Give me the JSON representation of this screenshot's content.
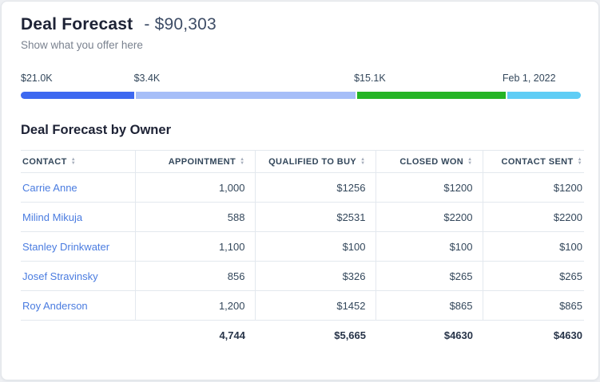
{
  "card": {
    "title": "Deal Forecast",
    "title_suffix": "- $90,303",
    "subtitle": "Show what you offer here"
  },
  "progress": {
    "segments": [
      {
        "label": "$21.0K",
        "color": "#3d68f0",
        "percent": 20.2
      },
      {
        "label": "$3.4K",
        "color": "#a6bef8",
        "percent": 39.3
      },
      {
        "label": "$15.1K",
        "color": "#25b425",
        "percent": 26.5
      },
      {
        "label": "Feb 1, 2022",
        "color": "#5fcdf5",
        "percent": 14.0
      }
    ]
  },
  "table": {
    "title": "Deal Forecast by Owner",
    "columns": [
      "Contact",
      "Appointment",
      "Qualified to Buy",
      "Closed Won",
      "Contact Sent"
    ],
    "rows": [
      [
        "Carrie Anne",
        "1,000",
        "$1256",
        "$1200",
        "$1200"
      ],
      [
        "Milind Mikuja",
        "588",
        "$2531",
        "$2200",
        "$2200"
      ],
      [
        "Stanley Drinkwater",
        "1,100",
        "$100",
        "$100",
        "$100"
      ],
      [
        "Josef Stravinsky",
        "856",
        "$326",
        "$265",
        "$265"
      ],
      [
        "Roy Anderson",
        "1,200",
        "$1452",
        "$865",
        "$865"
      ]
    ],
    "totals": [
      "",
      "4,744",
      "$5,665",
      "$4630",
      "$4630"
    ]
  }
}
